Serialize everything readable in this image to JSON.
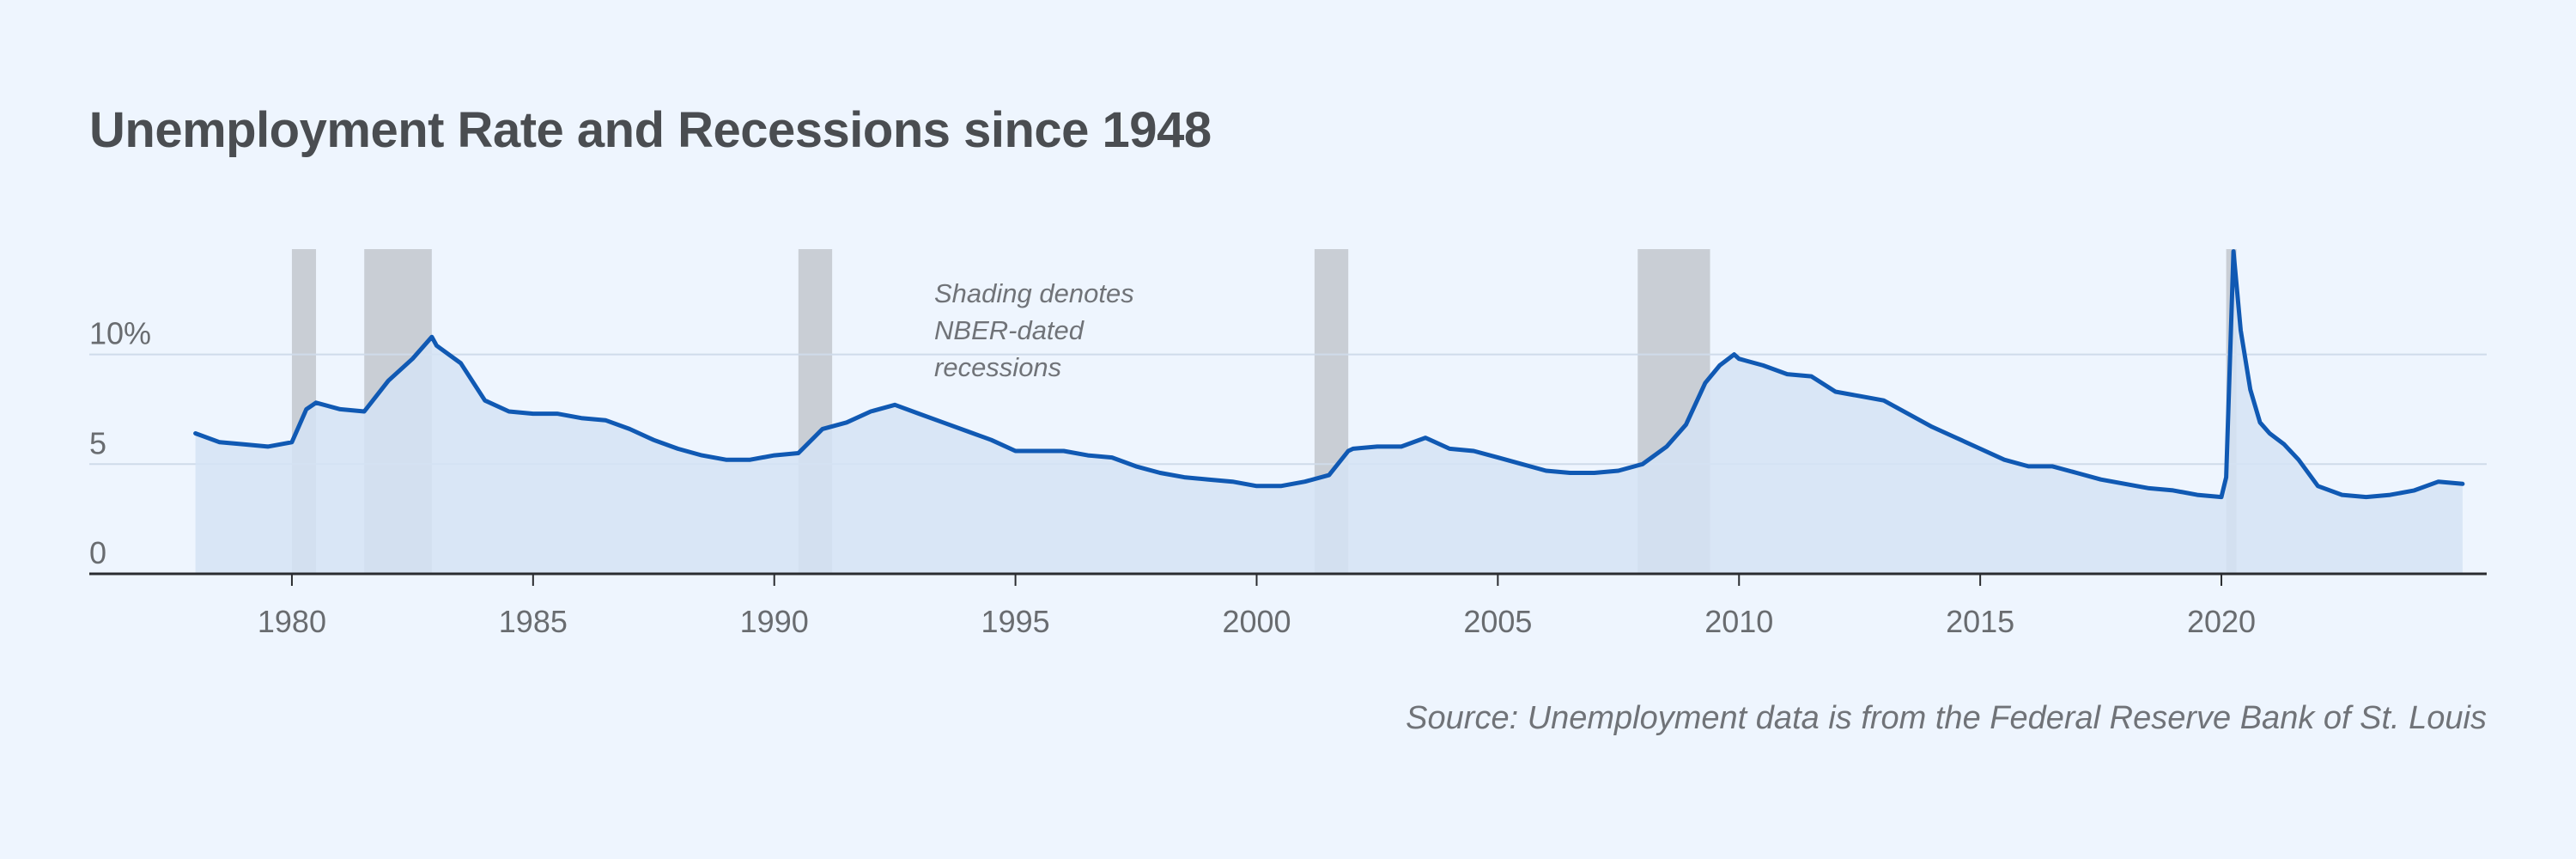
{
  "chart_data": {
    "type": "line",
    "title": "Unemployment Rate and Recessions since 1948",
    "source": "Source: Unemployment data is from the Federal Reserve Bank of St. Louis",
    "annotation": [
      "Shading denotes",
      "NBER-dated",
      "recessions"
    ],
    "xlim": [
      1975.8,
      2025.5
    ],
    "ylim": [
      0,
      14.8
    ],
    "y_ticks": [
      {
        "value": 0,
        "label": "0"
      },
      {
        "value": 5,
        "label": "5"
      },
      {
        "value": 10,
        "label": "10%"
      }
    ],
    "x_ticks": [
      {
        "value": 1980,
        "label": "1980"
      },
      {
        "value": 1985,
        "label": "1985"
      },
      {
        "value": 1990,
        "label": "1990"
      },
      {
        "value": 1995,
        "label": "1995"
      },
      {
        "value": 2000,
        "label": "2000"
      },
      {
        "value": 2005,
        "label": "2005"
      },
      {
        "value": 2010,
        "label": "2010"
      },
      {
        "value": 2015,
        "label": "2015"
      },
      {
        "value": 2020,
        "label": "2020"
      }
    ],
    "grid": "horizontal",
    "recessions": [
      {
        "start": 1980.0,
        "end": 1980.5
      },
      {
        "start": 1981.5,
        "end": 1982.9
      },
      {
        "start": 1990.5,
        "end": 1991.2
      },
      {
        "start": 2001.2,
        "end": 2001.9
      },
      {
        "start": 2007.9,
        "end": 2009.4
      },
      {
        "start": 2020.1,
        "end": 2020.3
      }
    ],
    "series": [
      {
        "color": "#1059b3",
        "fill": "#d5e3f5",
        "x": [
          1978.0,
          1978.5,
          1979.0,
          1979.5,
          1980.0,
          1980.3,
          1980.5,
          1981.0,
          1981.5,
          1982.0,
          1982.5,
          1982.9,
          1983.0,
          1983.5,
          1984.0,
          1984.5,
          1985.0,
          1985.5,
          1986.0,
          1986.5,
          1987.0,
          1987.5,
          1988.0,
          1988.5,
          1989.0,
          1989.5,
          1990.0,
          1990.5,
          1991.0,
          1991.5,
          1992.0,
          1992.5,
          1993.0,
          1993.5,
          1994.0,
          1994.5,
          1995.0,
          1995.5,
          1996.0,
          1996.5,
          1997.0,
          1997.5,
          1998.0,
          1998.5,
          1999.0,
          1999.5,
          2000.0,
          2000.5,
          2001.0,
          2001.5,
          2001.9,
          2002.0,
          2002.5,
          2003.0,
          2003.5,
          2004.0,
          2004.5,
          2005.0,
          2005.5,
          2006.0,
          2006.5,
          2007.0,
          2007.5,
          2008.0,
          2008.5,
          2008.9,
          2009.3,
          2009.6,
          2009.9,
          2010.0,
          2010.5,
          2011.0,
          2011.5,
          2012.0,
          2012.5,
          2013.0,
          2013.5,
          2014.0,
          2014.5,
          2015.0,
          2015.5,
          2016.0,
          2016.5,
          2017.0,
          2017.5,
          2018.0,
          2018.5,
          2019.0,
          2019.5,
          2020.0,
          2020.1,
          2020.25,
          2020.4,
          2020.6,
          2020.8,
          2021.0,
          2021.3,
          2021.6,
          2022.0,
          2022.5,
          2023.0,
          2023.5,
          2024.0,
          2024.5,
          2025.0
        ],
        "values": [
          6.4,
          6.0,
          5.9,
          5.8,
          6.0,
          7.5,
          7.8,
          7.5,
          7.4,
          8.8,
          9.8,
          10.8,
          10.4,
          9.6,
          7.9,
          7.4,
          7.3,
          7.3,
          7.1,
          7.0,
          6.6,
          6.1,
          5.7,
          5.4,
          5.2,
          5.2,
          5.4,
          5.5,
          6.6,
          6.9,
          7.4,
          7.7,
          7.3,
          6.9,
          6.5,
          6.1,
          5.6,
          5.6,
          5.6,
          5.4,
          5.3,
          4.9,
          4.6,
          4.4,
          4.3,
          4.2,
          4.0,
          4.0,
          4.2,
          4.5,
          5.6,
          5.7,
          5.8,
          5.8,
          6.2,
          5.7,
          5.6,
          5.3,
          5.0,
          4.7,
          4.6,
          4.6,
          4.7,
          5.0,
          5.8,
          6.8,
          8.7,
          9.5,
          10.0,
          9.8,
          9.5,
          9.1,
          9.0,
          8.3,
          8.1,
          7.9,
          7.3,
          6.7,
          6.2,
          5.7,
          5.2,
          4.9,
          4.9,
          4.6,
          4.3,
          4.1,
          3.9,
          3.8,
          3.6,
          3.5,
          4.4,
          14.7,
          11.1,
          8.4,
          6.9,
          6.4,
          5.9,
          5.2,
          4.0,
          3.6,
          3.5,
          3.6,
          3.8,
          4.2,
          4.1
        ]
      }
    ]
  }
}
